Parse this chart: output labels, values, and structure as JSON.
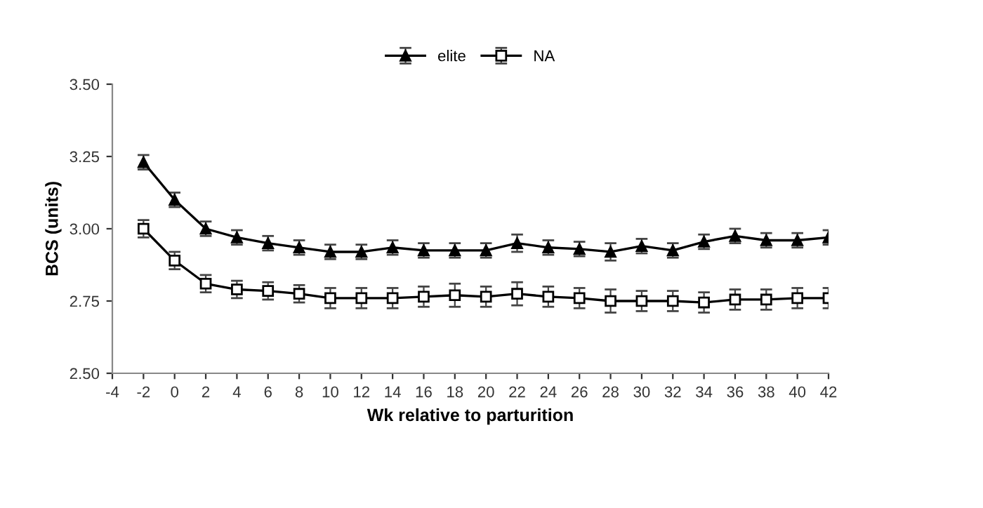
{
  "chart_data": {
    "type": "line",
    "xlabel": "Wk relative to parturition",
    "ylabel": "BCS (units)",
    "x": [
      -2,
      0,
      2,
      4,
      6,
      8,
      10,
      12,
      14,
      16,
      18,
      20,
      22,
      24,
      26,
      28,
      30,
      32,
      34,
      36,
      38,
      40,
      42
    ],
    "series": [
      {
        "name": "elite",
        "color": "#000000",
        "marker": "triangle",
        "values": [
          3.23,
          3.1,
          3.0,
          2.97,
          2.95,
          2.935,
          2.92,
          2.92,
          2.935,
          2.925,
          2.925,
          2.925,
          2.95,
          2.935,
          2.93,
          2.92,
          2.94,
          2.925,
          2.955,
          2.975,
          2.96,
          2.96,
          2.97
        ],
        "errors": [
          0.025,
          0.025,
          0.025,
          0.025,
          0.025,
          0.025,
          0.025,
          0.025,
          0.025,
          0.025,
          0.025,
          0.025,
          0.03,
          0.025,
          0.025,
          0.03,
          0.025,
          0.025,
          0.025,
          0.025,
          0.025,
          0.025,
          0.025
        ]
      },
      {
        "name": "NA",
        "color": "#000000",
        "marker": "square",
        "values": [
          3.0,
          2.89,
          2.81,
          2.79,
          2.785,
          2.775,
          2.76,
          2.76,
          2.76,
          2.765,
          2.77,
          2.765,
          2.775,
          2.765,
          2.76,
          2.75,
          2.75,
          2.75,
          2.745,
          2.755,
          2.755,
          2.76,
          2.76
        ],
        "errors": [
          0.03,
          0.03,
          0.03,
          0.03,
          0.03,
          0.03,
          0.035,
          0.035,
          0.035,
          0.035,
          0.04,
          0.035,
          0.04,
          0.035,
          0.035,
          0.04,
          0.035,
          0.035,
          0.035,
          0.035,
          0.035,
          0.035,
          0.035
        ]
      }
    ],
    "xlim": [
      -4,
      42
    ],
    "xticks": [
      -4,
      -2,
      0,
      2,
      4,
      6,
      8,
      10,
      12,
      14,
      16,
      18,
      20,
      22,
      24,
      26,
      28,
      30,
      32,
      34,
      36,
      38,
      40,
      42
    ],
    "ylim": [
      2.5,
      3.5
    ],
    "yticks": [
      {
        "value": 2.5,
        "label": "2.50"
      },
      {
        "value": 2.75,
        "label": "2.75"
      },
      {
        "value": 3.0,
        "label": "3.00"
      },
      {
        "value": 3.25,
        "label": "3.25"
      },
      {
        "value": 3.5,
        "label": "3.50"
      }
    ],
    "legend": "top",
    "grid": false,
    "line_style": "solid"
  }
}
